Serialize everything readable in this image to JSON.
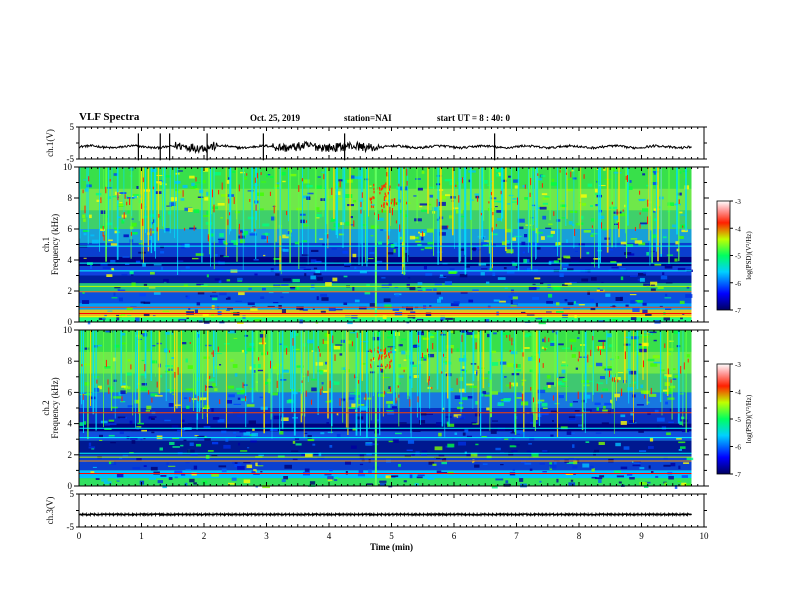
{
  "header": {
    "title": "VLF Spectra",
    "date": "Oct. 25, 2019",
    "station": "station=NAI",
    "start": "start UT =  8 : 40: 0"
  },
  "chart_data": [
    {
      "type": "line",
      "name": "ch1-waveform",
      "ylabel": "ch.1(V)",
      "ylim": [
        -5,
        5
      ],
      "y_ticks": [
        "5",
        "-5"
      ],
      "xlim": [
        0,
        10
      ],
      "baseline": -1.2
    },
    {
      "type": "heatmap",
      "name": "ch1-spectrogram",
      "ylabel": "ch.1\nFrequency (kHz)",
      "ylabel_line1": "ch.1",
      "ylabel_line2": "Frequency (kHz)",
      "ylim": [
        0,
        10
      ],
      "y_ticks": [
        "0",
        "2",
        "4",
        "6",
        "8",
        "10"
      ],
      "xlim": [
        0,
        10
      ],
      "data_end_min": 9.8,
      "colorbar": {
        "label": "log(PSD)(V²/Hz)",
        "range": [
          -7,
          -3
        ],
        "ticks": [
          "-3",
          "-4",
          "-5",
          "-6",
          "-7"
        ]
      }
    },
    {
      "type": "heatmap",
      "name": "ch2-spectrogram",
      "ylabel": "ch.2\nFrequency (kHz)",
      "ylabel_line1": "ch.2",
      "ylabel_line2": "Frequency (kHz)",
      "ylim": [
        0,
        10
      ],
      "y_ticks": [
        "0",
        "2",
        "4",
        "6",
        "8",
        "10"
      ],
      "xlim": [
        0,
        10
      ],
      "data_end_min": 9.8,
      "colorbar": {
        "label": "log(PSD)(V²/Hz)",
        "range": [
          -7,
          -3
        ],
        "ticks": [
          "-3",
          "-4",
          "-5",
          "-6",
          "-7"
        ]
      }
    },
    {
      "type": "line",
      "name": "ch3-waveform",
      "ylabel": "ch.3(V)",
      "ylim": [
        -5,
        5
      ],
      "y_ticks": [
        "5",
        "-5"
      ],
      "xlim": [
        0,
        10
      ],
      "baseline": -1.2
    }
  ],
  "x_axis": {
    "label": "Time (min)",
    "ticks": [
      "0",
      "1",
      "2",
      "3",
      "4",
      "5",
      "6",
      "7",
      "8",
      "9",
      "10"
    ]
  }
}
